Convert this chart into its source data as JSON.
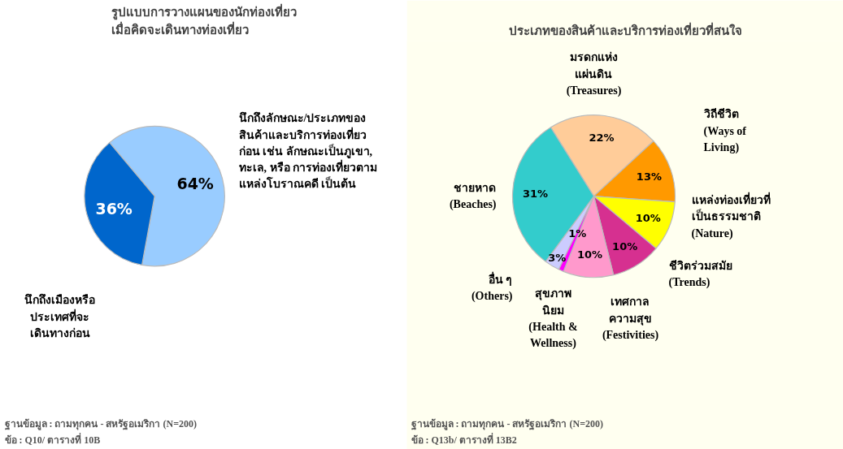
{
  "chart_data": [
    {
      "type": "pie",
      "title": "รูปแบบการวางแผนของนักท่องเที่ยว\nเมื่อคิดจะเดินทางท่องเที่ยว",
      "categories": [
        "นึกถึงลักษณะ/ประเภทของ\nสินค้าและบริการท่องเที่ยว\nก่อน เช่น ลักษณะเป็นภูเขา,\nทะเล, หรือ การท่องเที่ยวตาม\nแหล่งโบราณคดี เป็นต้น",
        "นึกถึงเมืองหรือ\nประเทศที่จะ\nเดินทางก่อน"
      ],
      "values": [
        64,
        36
      ],
      "colors": [
        "#99ccff",
        "#0066cc"
      ],
      "value_labels": [
        "64%",
        "36%"
      ],
      "annotations": [
        "ฐานข้อมูล : ถามทุกคน - สหรัฐอเมริกา     (N=200)",
        "ข้อ : Q10/ ตารางที่ 10B"
      ]
    },
    {
      "type": "pie",
      "title": "ประเภทของสินค้าและบริการท่องเที่ยวที่สนใจ",
      "categories": [
        "มรดกแห่ง\nแผ่นดิน\n(Treasures)",
        "วิถีชีวิต\n(Ways of\nLiving)",
        "แหล่งท่องเที่ยวที่\nเป็นธรรมชาติ\n(Nature)",
        "ชีวิตร่วมสมัย\n(Trends)",
        "เทศกาล\nความสุข\n(Festivities)",
        "สุขภาพ\nนิยม\n(Health &\nWellness)",
        "อื่น ๆ\n(Others)",
        "ชายหาด\n(Beaches)"
      ],
      "values": [
        22,
        13,
        10,
        10,
        10,
        1,
        3,
        31
      ],
      "colors": [
        "#ffcc99",
        "#ff9900",
        "#ffff00",
        "#d63090",
        "#ff99cc",
        "#ff00ff",
        "#ccccff",
        "#33cccc"
      ],
      "value_labels": [
        "22%",
        "13%",
        "10%",
        "10%",
        "10%",
        "1%",
        "3%",
        "31%"
      ],
      "annotations": [
        "ฐานข้อมูล : ถามทุกคน - สหรัฐอเมริกา       (N=200)",
        "ข้อ : Q13b/ ตารางที่ 13B2"
      ]
    }
  ]
}
